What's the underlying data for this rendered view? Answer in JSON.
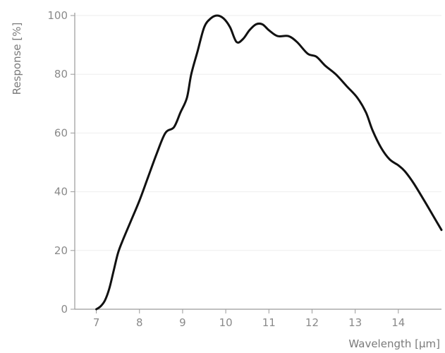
{
  "chart_data": {
    "type": "line",
    "xlabel": "Wavelength [µm]",
    "ylabel": "Response [%]",
    "xlim": [
      6.5,
      15.0
    ],
    "ylim": [
      0,
      100
    ],
    "x_ticks": [
      7,
      8,
      9,
      10,
      11,
      12,
      13,
      14
    ],
    "y_ticks": [
      0,
      20,
      40,
      60,
      80,
      100
    ],
    "grid": true,
    "colors": {
      "line": "#111111",
      "grid": "#eeeeee",
      "axis": "#9a9a9a",
      "tick_label": "#8a8a8a"
    },
    "series": [
      {
        "x": [
          7.0,
          7.1,
          7.2,
          7.3,
          7.4,
          7.5,
          7.6,
          7.8,
          8.0,
          8.2,
          8.4,
          8.6,
          8.8,
          8.95,
          9.1,
          9.2,
          9.35,
          9.5,
          9.65,
          9.8,
          9.95,
          10.1,
          10.25,
          10.4,
          10.55,
          10.7,
          10.85,
          11.0,
          11.2,
          11.45,
          11.65,
          11.9,
          12.1,
          12.3,
          12.55,
          12.8,
          13.05,
          13.25,
          13.4,
          13.6,
          13.8,
          14.0,
          14.15,
          14.35,
          14.6,
          14.8,
          15.0
        ],
        "y": [
          0,
          1,
          3,
          7,
          13,
          19,
          23,
          30,
          37,
          45,
          53,
          60,
          62,
          67,
          72,
          80,
          88,
          96,
          99,
          100,
          99,
          96,
          91,
          92,
          95,
          97,
          97,
          95,
          93,
          93,
          91,
          87,
          86,
          83,
          80,
          76,
          72,
          67,
          61,
          55,
          51,
          49,
          47,
          43,
          37,
          32,
          27
        ]
      }
    ]
  }
}
